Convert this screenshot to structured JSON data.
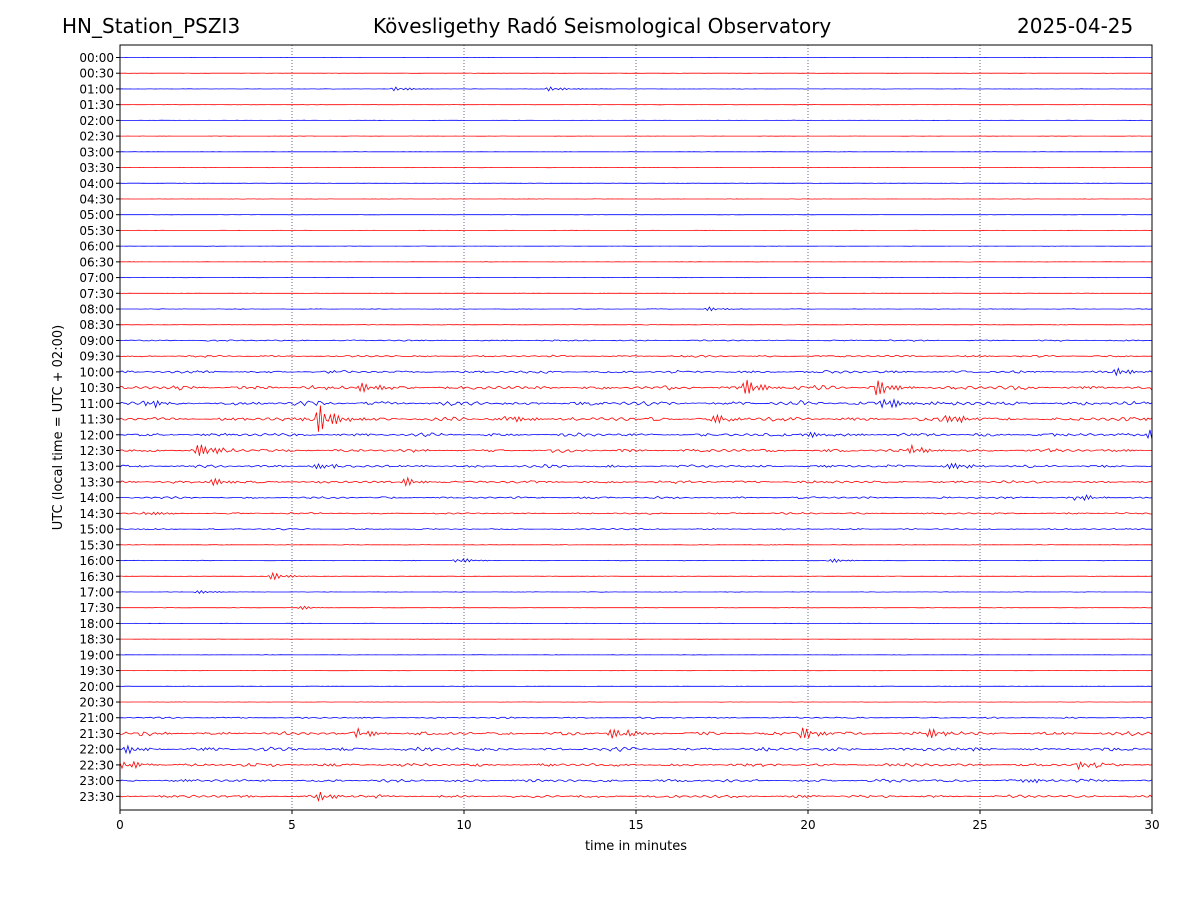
{
  "header": {
    "station": "HN_Station_PSZI3",
    "title": "Kövesligethy Radó Seismological Observatory",
    "date": "2025-04-25"
  },
  "chart_data": {
    "type": "line",
    "subtype": "helicorder",
    "xlabel": "time in minutes",
    "ylabel": "UTC (local time = UTC + 02:00)",
    "xlim": [
      0,
      30
    ],
    "xticks": [
      0,
      5,
      10,
      15,
      20,
      25,
      30
    ],
    "vertical_gridlines_at": [
      5,
      10,
      15,
      20,
      25
    ],
    "trace_colors": [
      "#0000ff",
      "#ff0000"
    ],
    "rows": [
      "00:00",
      "00:30",
      "01:00",
      "01:30",
      "02:00",
      "02:30",
      "03:00",
      "03:30",
      "04:00",
      "04:30",
      "05:00",
      "05:30",
      "06:00",
      "06:30",
      "07:00",
      "07:30",
      "08:00",
      "08:30",
      "09:00",
      "09:30",
      "10:00",
      "10:30",
      "11:00",
      "11:30",
      "12:00",
      "12:30",
      "13:00",
      "13:30",
      "14:00",
      "14:30",
      "15:00",
      "15:30",
      "16:00",
      "16:30",
      "17:00",
      "17:30",
      "18:00",
      "18:30",
      "19:00",
      "19:30",
      "20:00",
      "20:30",
      "21:00",
      "21:30",
      "22:00",
      "22:30",
      "23:00",
      "23:30"
    ],
    "row_noise_level": [
      0.3,
      0.3,
      0.3,
      0.3,
      0.3,
      0.3,
      0.3,
      0.3,
      0.3,
      0.3,
      0.3,
      0.3,
      0.3,
      0.3,
      0.3,
      0.3,
      0.5,
      0.5,
      1.2,
      1.5,
      2.2,
      3.2,
      3.5,
      3.2,
      2.6,
      2.6,
      2.2,
      2.2,
      1.8,
      1.4,
      1.2,
      0.5,
      0.5,
      0.4,
      0.4,
      0.4,
      0.3,
      0.3,
      0.3,
      0.3,
      0.3,
      0.3,
      1.2,
      3.0,
      3.0,
      2.6,
      2.4,
      2.4
    ],
    "events": [
      {
        "row": 2,
        "minute": 8.0,
        "amplitude": 2.5
      },
      {
        "row": 2,
        "minute": 12.5,
        "amplitude": 2.5
      },
      {
        "row": 16,
        "minute": 17.1,
        "amplitude": 2
      },
      {
        "row": 20,
        "minute": 29.0,
        "amplitude": 4
      },
      {
        "row": 21,
        "minute": 7.0,
        "amplitude": 5
      },
      {
        "row": 21,
        "minute": 18.2,
        "amplitude": 9
      },
      {
        "row": 21,
        "minute": 22.0,
        "amplitude": 9
      },
      {
        "row": 22,
        "minute": 22.2,
        "amplitude": 7
      },
      {
        "row": 22,
        "minute": 0.8,
        "amplitude": 5
      },
      {
        "row": 23,
        "minute": 5.8,
        "amplitude": 15
      },
      {
        "row": 23,
        "minute": 11.3,
        "amplitude": 5
      },
      {
        "row": 23,
        "minute": 17.2,
        "amplitude": 5
      },
      {
        "row": 23,
        "minute": 24.1,
        "amplitude": 6
      },
      {
        "row": 24,
        "minute": 19.9,
        "amplitude": 4
      },
      {
        "row": 24,
        "minute": 29.9,
        "amplitude": 6
      },
      {
        "row": 25,
        "minute": 2.2,
        "amplitude": 8
      },
      {
        "row": 25,
        "minute": 23.0,
        "amplitude": 5
      },
      {
        "row": 26,
        "minute": 5.6,
        "amplitude": 4
      },
      {
        "row": 26,
        "minute": 24.0,
        "amplitude": 4
      },
      {
        "row": 27,
        "minute": 2.6,
        "amplitude": 5
      },
      {
        "row": 27,
        "minute": 8.2,
        "amplitude": 5
      },
      {
        "row": 28,
        "minute": 27.8,
        "amplitude": 4
      },
      {
        "row": 29,
        "minute": 0.8,
        "amplitude": 3
      },
      {
        "row": 32,
        "minute": 9.8,
        "amplitude": 3
      },
      {
        "row": 32,
        "minute": 20.6,
        "amplitude": 2.5
      },
      {
        "row": 33,
        "minute": 4.4,
        "amplitude": 4
      },
      {
        "row": 34,
        "minute": 2.2,
        "amplitude": 2
      },
      {
        "row": 35,
        "minute": 5.2,
        "amplitude": 2
      },
      {
        "row": 43,
        "minute": 6.9,
        "amplitude": 5
      },
      {
        "row": 43,
        "minute": 14.2,
        "amplitude": 6
      },
      {
        "row": 43,
        "minute": 19.8,
        "amplitude": 7
      },
      {
        "row": 43,
        "minute": 23.5,
        "amplitude": 5
      },
      {
        "row": 44,
        "minute": 0.2,
        "amplitude": 4
      },
      {
        "row": 45,
        "minute": 0.1,
        "amplitude": 5
      },
      {
        "row": 45,
        "minute": 27.9,
        "amplitude": 4
      },
      {
        "row": 46,
        "minute": 26.3,
        "amplitude": 3
      },
      {
        "row": 47,
        "minute": 5.8,
        "amplitude": 4
      }
    ]
  }
}
